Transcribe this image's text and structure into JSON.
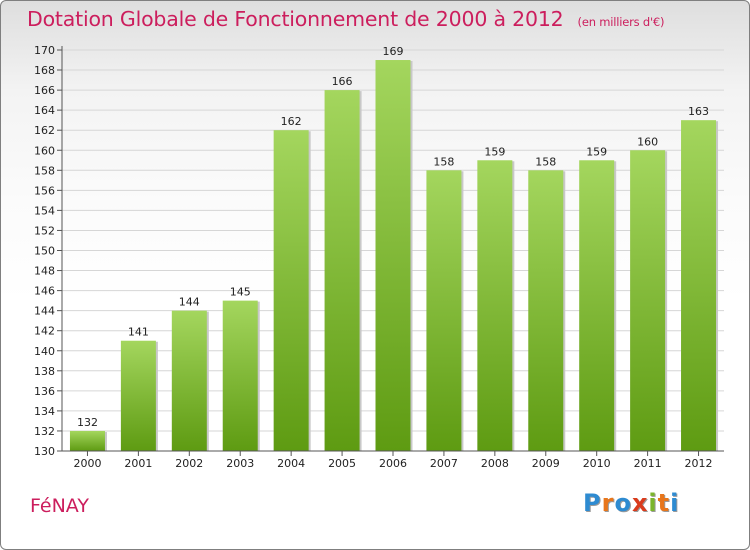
{
  "header": {
    "title": "Dotation Globale de Fonctionnement de 2000 à 2012",
    "unit": "(en milliers d'€)"
  },
  "footer": {
    "city": "FéNAY",
    "logo": "Proxiti",
    "logo_colors": [
      "#2e8bd1",
      "#e8761b",
      "#2e8bd1",
      "#d93b1c",
      "#7bb52c",
      "#e8761b",
      "#2e8bd1"
    ]
  },
  "colors": {
    "bar_top": "#a4d65e",
    "bar_bottom": "#5e9b12",
    "title": "#cc1e5d"
  },
  "chart_data": {
    "type": "bar",
    "title": "Dotation Globale de Fonctionnement de 2000 à 2012",
    "unit": "(en milliers d'€)",
    "categories": [
      "2000",
      "2001",
      "2002",
      "2003",
      "2004",
      "2005",
      "2006",
      "2007",
      "2008",
      "2009",
      "2010",
      "2011",
      "2012"
    ],
    "values": [
      132,
      141,
      144,
      145,
      162,
      166,
      169,
      158,
      159,
      158,
      159,
      160,
      163
    ],
    "ylim": [
      130,
      170
    ],
    "ytick_step": 2,
    "grid": true,
    "legend": "none",
    "data_labels": true
  }
}
